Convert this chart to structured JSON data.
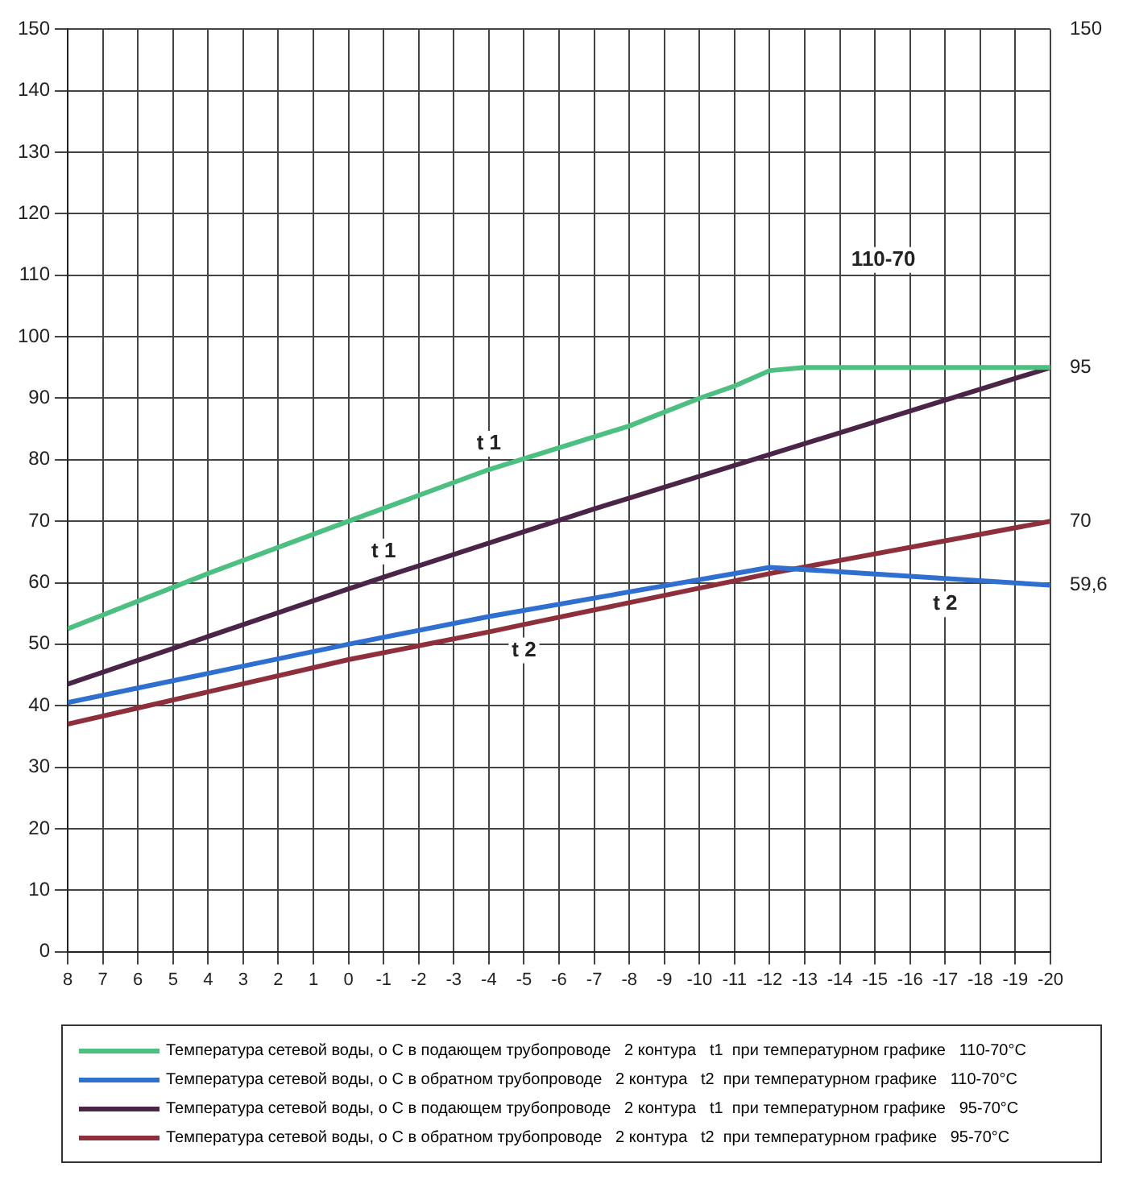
{
  "chart_data": {
    "type": "line",
    "xlim": [
      8,
      -20
    ],
    "xticks": [
      8,
      7,
      6,
      5,
      4,
      3,
      2,
      1,
      0,
      -1,
      -2,
      -3,
      -4,
      -5,
      -6,
      -7,
      -8,
      -9,
      -10,
      -11,
      -12,
      -13,
      -14,
      -15,
      -16,
      -17,
      -18,
      -19,
      -20
    ],
    "ylim": [
      0,
      150
    ],
    "yticks": [
      0,
      10,
      20,
      30,
      40,
      50,
      60,
      70,
      80,
      90,
      100,
      110,
      120,
      130,
      140,
      150
    ],
    "grid": true,
    "legend": "bottom",
    "marker": "none",
    "line_style": "solid",
    "series": [
      {
        "name": "Температура сетевой воды, о С в подающем трубопроводе   2 контура   t1  при температурном графике   110-70°C",
        "color": "#4dbf80",
        "x": [
          8,
          4,
          0,
          -4,
          -8,
          -10,
          -11,
          -12,
          -13,
          -20
        ],
        "values": [
          52.5,
          61.5,
          70,
          78.4,
          85.5,
          90,
          92,
          94.5,
          95,
          95
        ]
      },
      {
        "name": "Температура сетевой воды, о С в обратном трубопроводе   2 контура   t2  при температурном графике   110-70°C",
        "color": "#2f6fd0",
        "x": [
          8,
          0,
          -4,
          -12,
          -17,
          -20
        ],
        "values": [
          40.5,
          50,
          54.5,
          62.5,
          60.7,
          59.6
        ]
      },
      {
        "name": "Температура сетевой воды, о С в подающем трубопроводе   2 контура   t1  при температурном графике   95-70°C",
        "color": "#4b2548",
        "x": [
          8,
          0,
          -1,
          -7,
          -20
        ],
        "values": [
          43.5,
          59,
          60.9,
          72,
          95
        ]
      },
      {
        "name": "Температура сетевой воды, о С в обратном трубопроводе   2 контура   t2  при температурном графике   95-70°C",
        "color": "#8e2f3c",
        "x": [
          8,
          0,
          -4,
          -5,
          -12,
          -20
        ],
        "values": [
          37,
          47.5,
          52,
          53.2,
          61.5,
          70
        ]
      }
    ],
    "annotations": [
      {
        "text": "t 1",
        "x": -4,
        "y": 78.4
      },
      {
        "text": "t 1",
        "x": -1,
        "y": 60.9
      },
      {
        "text": "t 2",
        "x": -5,
        "y": 53.2
      },
      {
        "text": "t 2",
        "x": -17,
        "y": 60.7
      },
      "150",
      "110-70",
      {
        "text": "95",
        "x": -20,
        "y": 95
      },
      {
        "text": "70",
        "x": -20,
        "y": 70
      },
      {
        "text": "59,6",
        "x": -20,
        "y": 59.6
      }
    ]
  }
}
